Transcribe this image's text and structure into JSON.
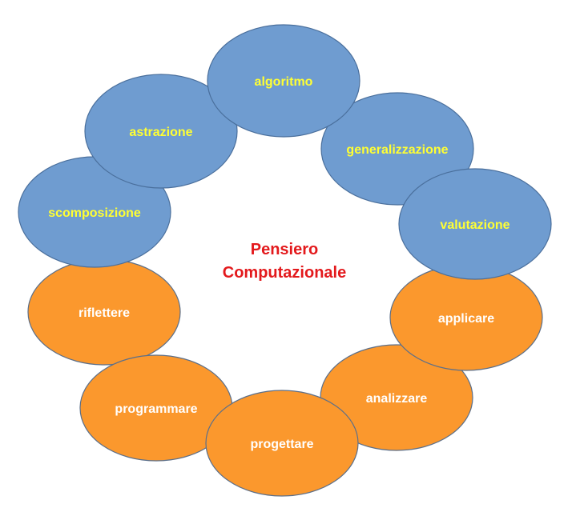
{
  "center": {
    "line1": "Pensiero",
    "line2": "Computazionale",
    "color": "#e3191c"
  },
  "colors": {
    "blue_fill": "#6f9cd0",
    "blue_stroke": "#4a6f9c",
    "blue_text": "#ffff33",
    "orange_fill": "#fb982d",
    "orange_stroke": "#5b6f8a",
    "orange_text": "#ffffff"
  },
  "nodes": [
    {
      "id": "reflect",
      "label": "riflettere",
      "group": "orange"
    },
    {
      "id": "program",
      "label": "programmare",
      "group": "orange"
    },
    {
      "id": "analyze",
      "label": "analizzare",
      "group": "orange"
    },
    {
      "id": "design",
      "label": "progettare",
      "group": "orange"
    },
    {
      "id": "apply",
      "label": "applicare",
      "group": "orange"
    },
    {
      "id": "decompose",
      "label": "scomposizione",
      "group": "blue"
    },
    {
      "id": "abstract",
      "label": "astrazione",
      "group": "blue"
    },
    {
      "id": "generalize",
      "label": "generalizzazione",
      "group": "blue"
    },
    {
      "id": "algorithm",
      "label": "algoritmo",
      "group": "blue"
    },
    {
      "id": "evaluate",
      "label": "valutazione",
      "group": "blue"
    }
  ]
}
